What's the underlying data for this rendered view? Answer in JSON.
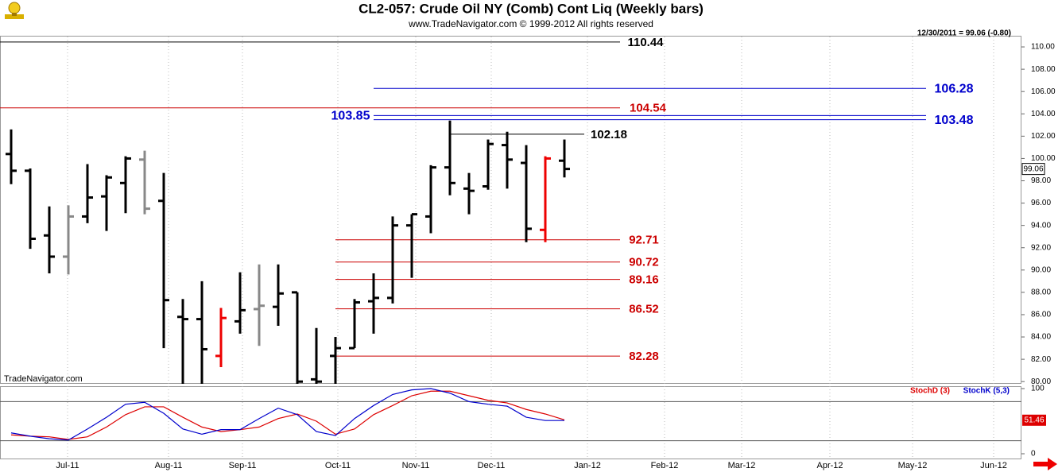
{
  "chart_data": [
    {
      "type": "ohlc",
      "title": "CL2-057:  Crude Oil NY (Comb) Cont Liq  (Weekly bars)",
      "subtitle": "www.TradeNavigator.com © 1999-2012 All rights reserved",
      "header_note": "12/30/2011 = 99.06 (-0.80)",
      "watermark": "TradeNavigator.com",
      "xtick_labels": [
        "Jul-11",
        "Aug-11",
        "Sep-11",
        "Oct-11",
        "Nov-11",
        "Dec-11",
        "Jan-12",
        "Feb-12",
        "Mar-12",
        "Apr-12",
        "May-12",
        "Jun-12"
      ],
      "ylim": [
        79.8,
        111
      ],
      "yticks": [
        {
          "value": 80,
          "label": "80.00"
        },
        {
          "value": 82,
          "label": "82.00"
        },
        {
          "value": 84,
          "label": "84.00"
        },
        {
          "value": 86,
          "label": "86.00"
        },
        {
          "value": 88,
          "label": "88.00"
        },
        {
          "value": 90,
          "label": "90.00"
        },
        {
          "value": 92,
          "label": "92.00"
        },
        {
          "value": 94,
          "label": "94.00"
        },
        {
          "value": 96,
          "label": "96.00"
        },
        {
          "value": 98,
          "label": "98.00"
        },
        {
          "value": 100,
          "label": "100.00"
        },
        {
          "value": 102,
          "label": "102.00"
        },
        {
          "value": 104,
          "label": "104.00"
        },
        {
          "value": 106,
          "label": "106.00"
        },
        {
          "value": 108,
          "label": "108.00"
        },
        {
          "value": 110,
          "label": "110.00"
        }
      ],
      "levels": [
        {
          "value": 110.44,
          "color": "#000000"
        },
        {
          "value": 106.28,
          "color": "#0000cc"
        },
        {
          "value": 104.54,
          "color": "#cc0000"
        },
        {
          "value": 103.85,
          "color": "#0000cc"
        },
        {
          "value": 103.48,
          "color": "#0000cc"
        },
        {
          "value": 102.18,
          "color": "#000000"
        },
        {
          "value": 92.71,
          "color": "#cc0000"
        },
        {
          "value": 90.72,
          "color": "#cc0000"
        },
        {
          "value": 89.16,
          "color": "#cc0000"
        },
        {
          "value": 86.52,
          "color": "#cc0000"
        },
        {
          "value": 82.28,
          "color": "#cc0000"
        }
      ],
      "open": [
        100.4,
        98.9,
        93.1,
        91.2,
        94.8,
        96.6,
        97.8,
        99.9,
        96.2,
        85.8,
        85.6,
        82.3,
        85.4,
        86.5,
        86.7,
        88.0,
        80.2,
        82.3,
        83.0,
        87.2,
        87.5,
        94.0,
        94.8,
        99.2,
        97.3,
        97.5,
        101.2,
        99.6,
        93.6,
        99.8
      ],
      "high": [
        102.6,
        99.1,
        95.7,
        95.8,
        99.5,
        98.5,
        100.2,
        100.7,
        98.7,
        87.4,
        89.0,
        86.6,
        89.8,
        90.5,
        90.5,
        88.0,
        84.8,
        84.0,
        87.4,
        89.7,
        94.8,
        95.0,
        99.4,
        103.4,
        98.7,
        101.7,
        102.4,
        101.2,
        100.2,
        101.7
      ],
      "low": [
        97.7,
        91.9,
        89.7,
        89.6,
        94.2,
        93.5,
        95.1,
        95.0,
        83.0,
        79.8,
        79.8,
        81.3,
        84.3,
        83.2,
        85.0,
        79.8,
        79.8,
        79.8,
        83.0,
        84.3,
        87.0,
        89.3,
        93.3,
        96.7,
        95.0,
        97.2,
        97.3,
        92.5,
        92.5,
        98.3
      ],
      "close": [
        98.9,
        92.8,
        91.2,
        94.8,
        96.5,
        98.3,
        100.0,
        95.5,
        87.3,
        85.6,
        82.9,
        85.7,
        86.4,
        86.8,
        87.9,
        80.0,
        80.0,
        83.0,
        87.1,
        87.5,
        94.0,
        95.0,
        99.2,
        97.8,
        97.1,
        101.3,
        99.9,
        93.7,
        100.0,
        99.06
      ],
      "colors": [
        "#000000",
        "#000000",
        "#000000",
        "#888888",
        "#000000",
        "#000000",
        "#000000",
        "#888888",
        "#000000",
        "#000000",
        "#000000",
        "#ee0000",
        "#000000",
        "#888888",
        "#000000",
        "#000000",
        "#000000",
        "#000000",
        "#000000",
        "#000000",
        "#000000",
        "#000000",
        "#000000",
        "#000000",
        "#000000",
        "#000000",
        "#000000",
        "#000000",
        "#ee0000",
        "#000000"
      ]
    },
    {
      "type": "line",
      "ylim": [
        0,
        100
      ],
      "yticks": [
        0,
        100
      ],
      "bands": [
        20,
        80
      ],
      "current_value": 51.46,
      "series": [
        {
          "name": "StochD (3)",
          "color": "#dd0000",
          "values": [
            29,
            27,
            26,
            22,
            26,
            41,
            60,
            72,
            72,
            56,
            41,
            34,
            37,
            41,
            54,
            61,
            50,
            30,
            38,
            60,
            74,
            89,
            96,
            96,
            89,
            82,
            78,
            68,
            61,
            52
          ]
        },
        {
          "name": "StochK (5,3)",
          "color": "#0000cc",
          "values": [
            32,
            27,
            23,
            21,
            38,
            56,
            76,
            79,
            62,
            38,
            30,
            37,
            37,
            54,
            70,
            60,
            34,
            28,
            54,
            74,
            91,
            98,
            100,
            93,
            80,
            76,
            73,
            56,
            51,
            51
          ]
        }
      ]
    }
  ]
}
